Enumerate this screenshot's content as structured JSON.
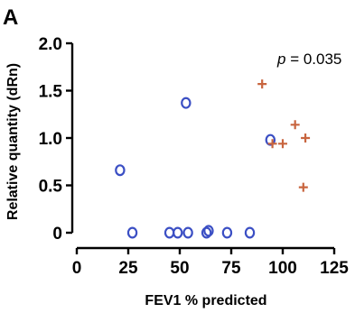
{
  "panel_label": "A",
  "chart_data": {
    "type": "scatter",
    "title": "",
    "xlabel": "FEV1 % predicted",
    "ylabel": "Relative quantity (dRn)",
    "xlim": [
      0,
      125
    ],
    "ylim": [
      0,
      2.0
    ],
    "x_ticks": [
      0,
      25,
      50,
      75,
      100,
      125
    ],
    "x_tick_labels": [
      "0",
      "25",
      "50",
      "75",
      "100",
      "125"
    ],
    "y_ticks": [
      0,
      0.5,
      1.0,
      1.5,
      2.0
    ],
    "y_tick_labels": [
      "0",
      "0.5",
      "1.0",
      "1.5",
      "2.0"
    ],
    "grid": false,
    "annotation": {
      "italic": "p",
      "text": " = 0.035"
    },
    "series": [
      {
        "marker": "open-circle",
        "color": "#3b4fc4",
        "points": [
          {
            "x": 21,
            "y": 0.66
          },
          {
            "x": 53,
            "y": 1.37
          },
          {
            "x": 94,
            "y": 0.98
          },
          {
            "x": 27,
            "y": 0.0
          },
          {
            "x": 45,
            "y": 0.0
          },
          {
            "x": 49,
            "y": 0.0
          },
          {
            "x": 54,
            "y": 0.0
          },
          {
            "x": 63,
            "y": 0.0
          },
          {
            "x": 64,
            "y": 0.02
          },
          {
            "x": 73,
            "y": 0.0
          },
          {
            "x": 84,
            "y": 0.0
          }
        ]
      },
      {
        "marker": "plus",
        "color": "#c8653f",
        "points": [
          {
            "x": 90,
            "y": 1.57
          },
          {
            "x": 106,
            "y": 1.14
          },
          {
            "x": 111,
            "y": 1.0
          },
          {
            "x": 95,
            "y": 0.94
          },
          {
            "x": 100,
            "y": 0.94
          },
          {
            "x": 110,
            "y": 0.48
          }
        ]
      }
    ]
  }
}
